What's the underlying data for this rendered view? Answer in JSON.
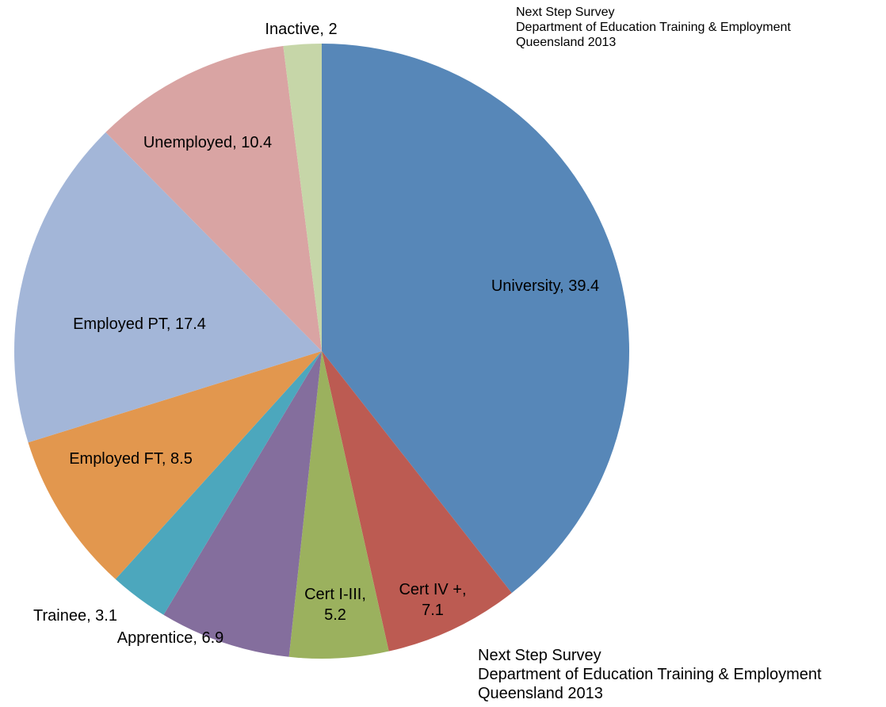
{
  "chart_data": {
    "type": "pie",
    "categories": [
      "University",
      "Cert IV +",
      "Cert I-III",
      "Apprentice",
      "Trainee",
      "Employed FT",
      "Employed PT",
      "Unemployed",
      "Inactive"
    ],
    "values": [
      39.4,
      7.1,
      5.2,
      6.9,
      3.1,
      8.5,
      17.4,
      10.4,
      2
    ],
    "value_labels": [
      "University, 39.4",
      "Cert IV +, 7.1",
      "Cert I-III, 5.2",
      "Apprentice, 6.9",
      "Trainee, 3.1",
      "Employed FT, 8.5",
      "Employed PT, 17.4",
      "Unemployed, 10.4",
      "Inactive, 2"
    ],
    "colors": [
      "#5787b8",
      "#bc5b52",
      "#9bb15e",
      "#846e9d",
      "#4ca7bd",
      "#e2974e",
      "#a3b6d8",
      "#d9a4a3",
      "#c6d6a8"
    ],
    "annotations": [
      [
        "Next Step Survey",
        "Department of Education Training & Employment",
        "Queensland 2013"
      ],
      [
        "Next Step Survey",
        "Department of Education Training & Employment",
        "Queensland 2013"
      ]
    ]
  }
}
